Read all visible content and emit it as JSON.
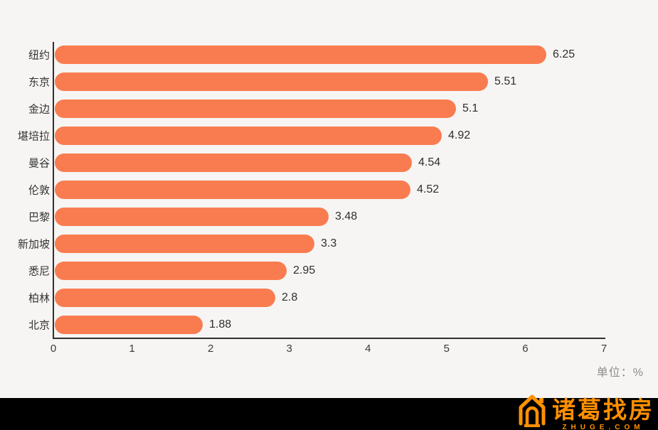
{
  "chart_data": {
    "type": "bar",
    "orientation": "horizontal",
    "categories": [
      "纽约",
      "东京",
      "金边",
      "堪培拉",
      "曼谷",
      "伦敦",
      "巴黎",
      "新加坡",
      "悉尼",
      "柏林",
      "北京"
    ],
    "values": [
      6.25,
      5.51,
      5.1,
      4.92,
      4.54,
      4.52,
      3.48,
      3.3,
      2.95,
      2.8,
      1.88
    ],
    "value_labels": [
      "6.25",
      "5.51",
      "5.1",
      "4.92",
      "4.54",
      "4.52",
      "3.48",
      "3.3",
      "2.95",
      "2.8",
      "1.88"
    ],
    "x_ticks": [
      "0",
      "1",
      "2",
      "3",
      "4",
      "5",
      "6",
      "7"
    ],
    "xlim": [
      0,
      7
    ],
    "title": "",
    "xlabel": "",
    "ylabel": "",
    "unit_label": "单位：%",
    "grid": false,
    "legend": false,
    "bar_color": "#f97c50",
    "background_color": "#f6f5f3"
  },
  "watermark": {
    "brand": "诸葛找房",
    "domain": "ZHUGE.COM",
    "color": "#ff9000",
    "icon": "house-icon"
  }
}
